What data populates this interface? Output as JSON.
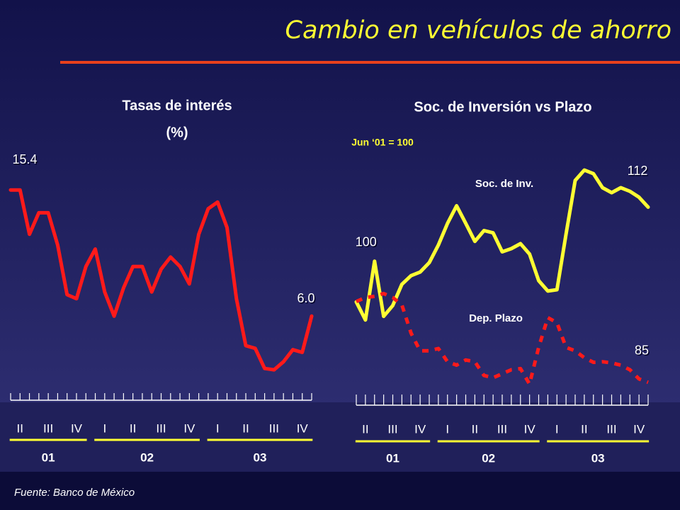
{
  "title": "Cambio en vehículos de ahorro",
  "source": "Fuente: Banco de México",
  "chart_data": [
    {
      "type": "line",
      "title": "Tasas de interés",
      "subtitle": "(%)",
      "categories": [
        null,
        "II",
        null,
        null,
        "III",
        null,
        null,
        "IV",
        null,
        null,
        "I",
        null,
        null,
        "II",
        null,
        null,
        "III",
        null,
        null,
        "IV",
        null,
        null,
        "I",
        null,
        null,
        "II",
        null,
        null,
        "III",
        null,
        null,
        "IV",
        null
      ],
      "year_groups": [
        "01",
        "02",
        "03"
      ],
      "ylim": [
        0,
        19
      ],
      "series": [
        {
          "color": "#ff1a1a",
          "values": [
            15.4,
            15.4,
            12.1,
            13.7,
            13.7,
            11.3,
            7.6,
            7.3,
            9.7,
            11.0,
            7.8,
            6.0,
            8.1,
            9.7,
            9.7,
            7.8,
            9.5,
            10.4,
            9.7,
            8.4,
            12.1,
            14.0,
            14.5,
            12.6,
            7.3,
            3.8,
            3.6,
            2.1,
            2.0,
            2.6,
            3.5,
            3.3,
            6.0
          ],
          "value_labels": [
            "15.4",
            null,
            null,
            null,
            null,
            null,
            null,
            null,
            null,
            null,
            null,
            null,
            null,
            null,
            null,
            null,
            null,
            null,
            null,
            null,
            null,
            null,
            null,
            null,
            null,
            null,
            null,
            null,
            null,
            null,
            null,
            null,
            "6.0"
          ]
        }
      ]
    },
    {
      "type": "line",
      "title": "Soc. de Inversión vs Plazo",
      "annotation": "Jun ‘01 = 100",
      "categories": [
        null,
        "II",
        null,
        null,
        "III",
        null,
        null,
        "IV",
        null,
        null,
        "I",
        null,
        null,
        "II",
        null,
        null,
        "III",
        null,
        null,
        "IV",
        null,
        null,
        "I",
        null,
        null,
        "II",
        null,
        null,
        "III",
        null,
        null,
        "IV",
        null
      ],
      "year_groups": [
        "01",
        "02",
        "03"
      ],
      "ylim": [
        70,
        126.5
      ],
      "y2lim": [
        82.5,
        127
      ],
      "series": [
        {
          "name": "Soc. de Inv.",
          "color": "#ffff33",
          "dashed": false,
          "values": [
            91.0,
            87.0,
            100,
            87.8,
            90.2,
            94.9,
            96.8,
            97.6,
            99.7,
            103.6,
            108.4,
            112.3,
            108.4,
            104.4,
            106.8,
            106.3,
            102.1,
            102.8,
            103.9,
            101.6,
            95.7,
            93.4,
            93.7,
            106.0,
            117.9,
            120.2,
            119.4,
            116.3,
            115.2,
            116.3,
            115.5,
            114.2,
            112
          ]
        },
        {
          "name": "Dep. Plazo",
          "color": "#ff1a1a",
          "dashed": true,
          "axis": "y2",
          "values": [
            99.1,
            99.8,
            100,
            100.5,
            99.8,
            98.5,
            93.6,
            90.5,
            90.5,
            90.9,
            88.6,
            88.0,
            88.9,
            88.6,
            86.2,
            85.8,
            86.5,
            87.2,
            87.4,
            84.7,
            91.1,
            96.3,
            95.4,
            91.1,
            90.5,
            89.3,
            88.5,
            88.6,
            88.4,
            88.0,
            87.2,
            85.6,
            85
          ]
        }
      ]
    }
  ]
}
